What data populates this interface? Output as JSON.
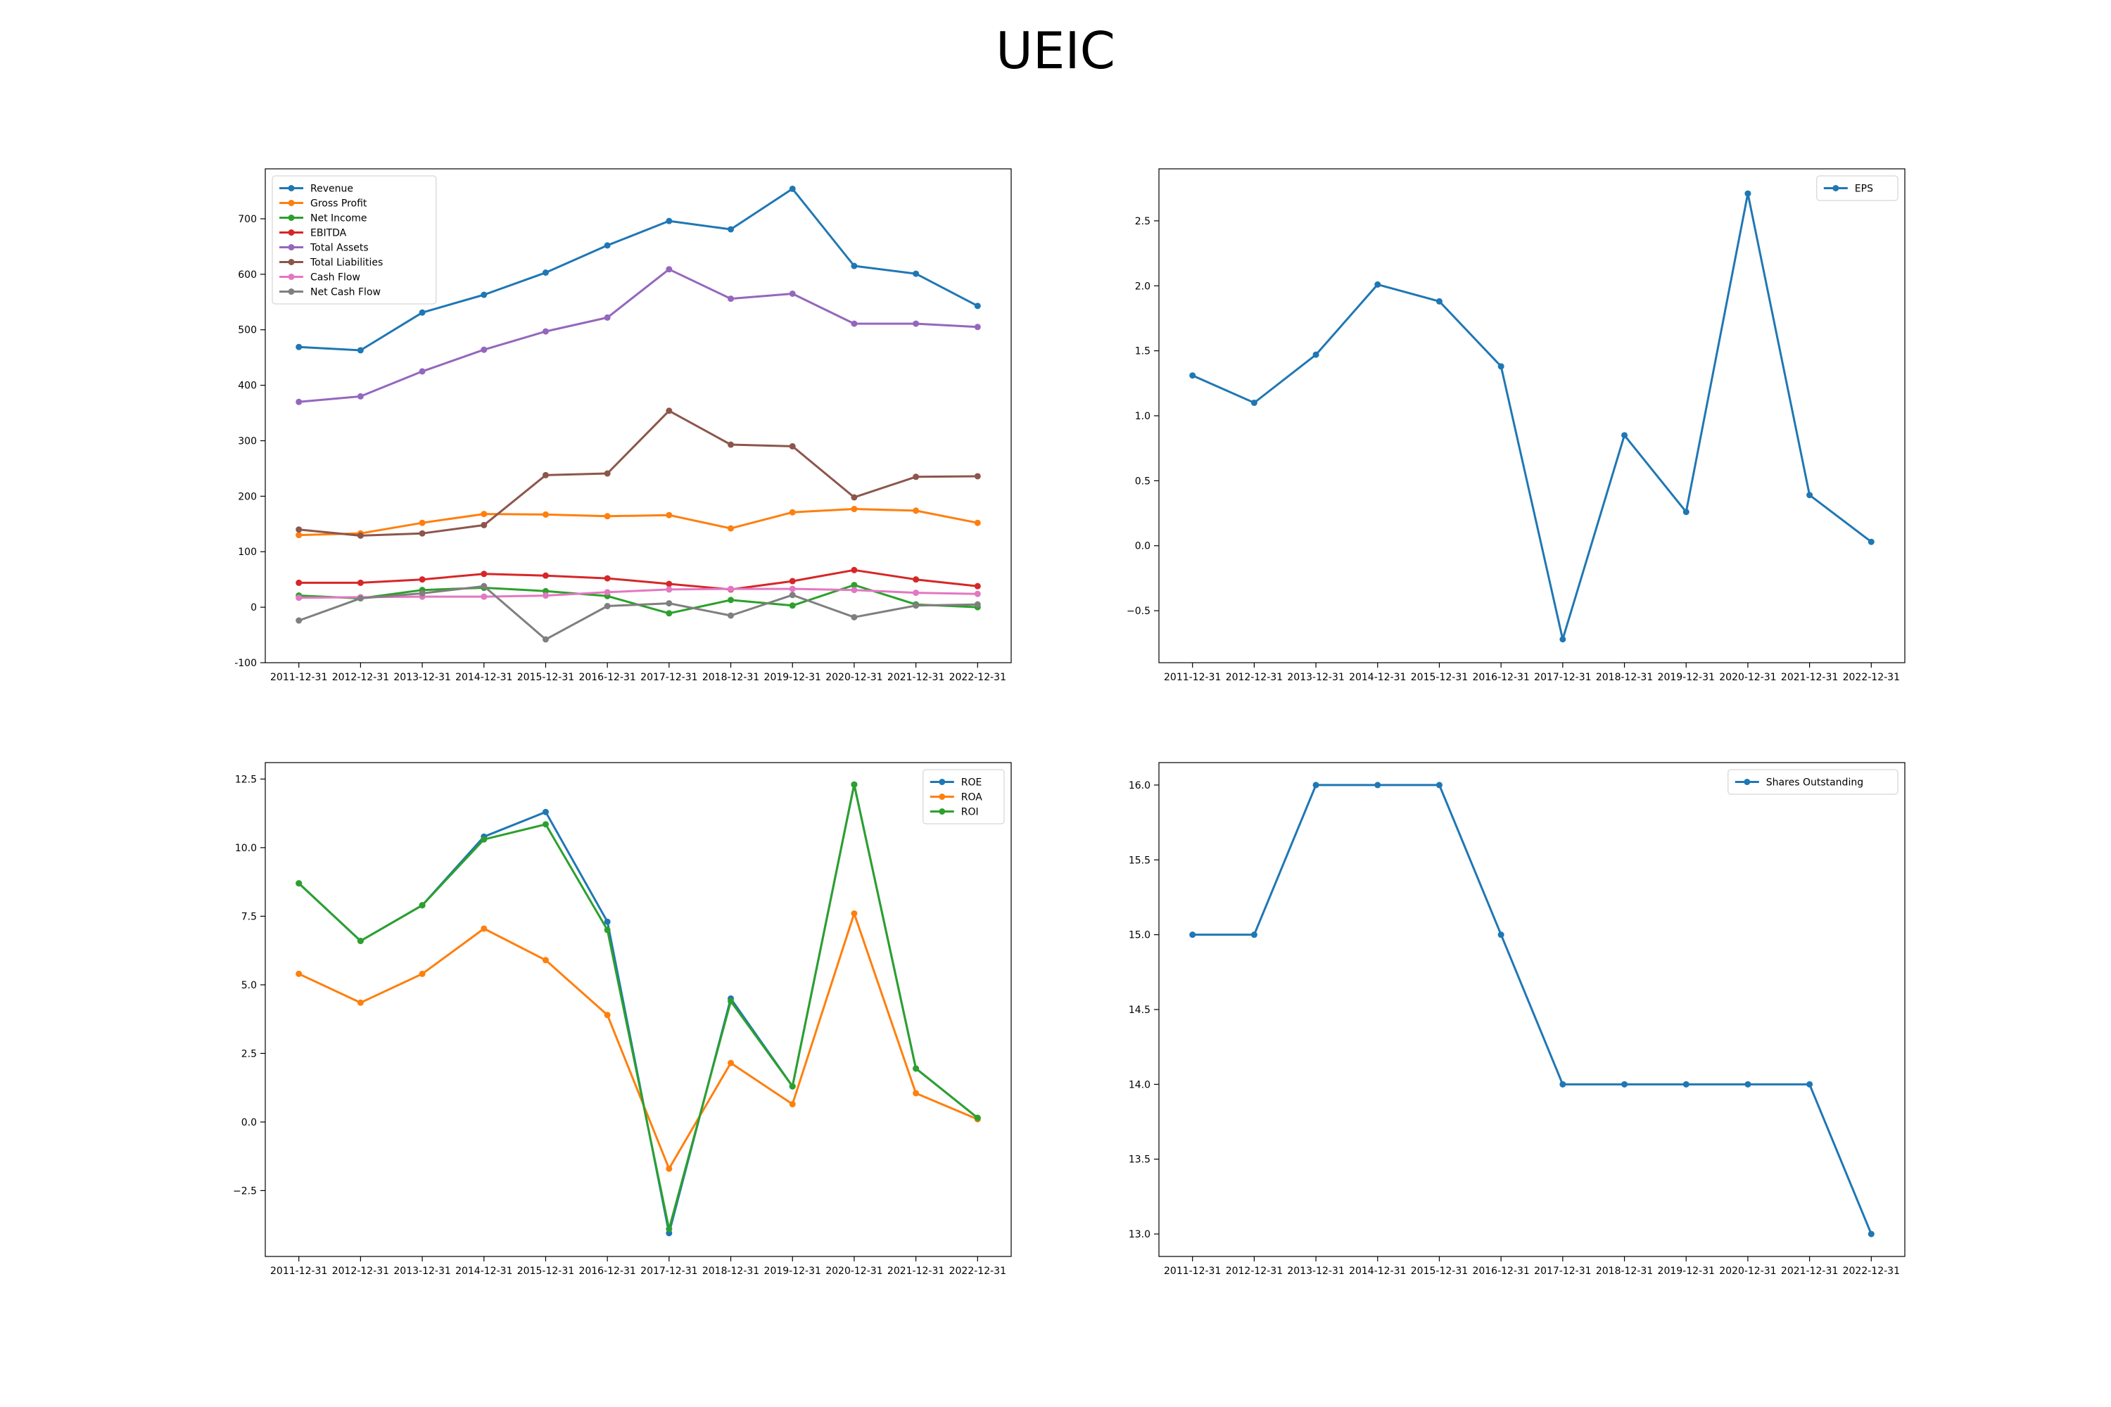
{
  "figure": {
    "title": "UEIC"
  },
  "chart_data": [
    {
      "type": "line",
      "title": "",
      "xlabel": "",
      "ylabel": "",
      "x": [
        "2011-12-31",
        "2012-12-31",
        "2013-12-31",
        "2014-12-31",
        "2015-12-31",
        "2016-12-31",
        "2017-12-31",
        "2018-12-31",
        "2019-12-31",
        "2020-12-31",
        "2021-12-31",
        "2022-12-31"
      ],
      "ylim": [
        -100,
        790
      ],
      "yticks": [
        -100,
        0,
        100,
        200,
        300,
        400,
        500,
        600,
        700
      ],
      "legend": "upper-left",
      "grid": false,
      "series": [
        {
          "name": "Revenue",
          "color": "#1f77b4",
          "values": [
            469,
            463,
            531,
            563,
            603,
            652,
            696,
            681,
            754,
            615,
            601,
            543
          ]
        },
        {
          "name": "Gross Profit",
          "color": "#ff7f0e",
          "values": [
            130,
            133,
            152,
            168,
            167,
            164,
            166,
            142,
            171,
            177,
            174,
            152
          ]
        },
        {
          "name": "Net Income",
          "color": "#2ca02c",
          "values": [
            21,
            16,
            31,
            35,
            29,
            20,
            -11,
            13,
            3,
            40,
            5,
            0
          ]
        },
        {
          "name": "EBITDA",
          "color": "#d62728",
          "values": [
            44,
            44,
            50,
            60,
            57,
            52,
            42,
            32,
            47,
            67,
            50,
            38
          ]
        },
        {
          "name": "Total Assets",
          "color": "#9467bd",
          "values": [
            370,
            380,
            425,
            464,
            497,
            522,
            609,
            556,
            565,
            511,
            511,
            505
          ]
        },
        {
          "name": "Total Liabilities",
          "color": "#8c564b",
          "values": [
            140,
            129,
            133,
            148,
            238,
            241,
            354,
            293,
            290,
            198,
            235,
            236
          ]
        },
        {
          "name": "Cash Flow",
          "color": "#e377c2",
          "values": [
            17,
            18,
            19,
            19,
            21,
            27,
            32,
            33,
            33,
            31,
            26,
            24
          ]
        },
        {
          "name": "Net Cash Flow",
          "color": "#7f7f7f",
          "values": [
            -24,
            16,
            25,
            38,
            -58,
            2,
            7,
            -15,
            22,
            -18,
            3,
            5
          ]
        }
      ]
    },
    {
      "type": "line",
      "title": "",
      "xlabel": "",
      "ylabel": "",
      "x": [
        "2011-12-31",
        "2012-12-31",
        "2013-12-31",
        "2014-12-31",
        "2015-12-31",
        "2016-12-31",
        "2017-12-31",
        "2018-12-31",
        "2019-12-31",
        "2020-12-31",
        "2021-12-31",
        "2022-12-31"
      ],
      "ylim": [
        -0.9,
        2.9
      ],
      "yticks": [
        -0.5,
        0.0,
        0.5,
        1.0,
        1.5,
        2.0,
        2.5
      ],
      "tick_labels": [
        "−0.5",
        "0.0",
        "0.5",
        "1.0",
        "1.5",
        "2.0",
        "2.5"
      ],
      "legend": "upper-right",
      "grid": false,
      "series": [
        {
          "name": "EPS",
          "color": "#1f77b4",
          "values": [
            1.31,
            1.1,
            1.47,
            2.01,
            1.88,
            1.38,
            -0.72,
            0.85,
            0.26,
            2.71,
            0.39,
            0.03
          ]
        }
      ]
    },
    {
      "type": "line",
      "title": "",
      "xlabel": "",
      "ylabel": "",
      "x": [
        "2011-12-31",
        "2012-12-31",
        "2013-12-31",
        "2014-12-31",
        "2015-12-31",
        "2016-12-31",
        "2017-12-31",
        "2018-12-31",
        "2019-12-31",
        "2020-12-31",
        "2021-12-31",
        "2022-12-31"
      ],
      "ylim": [
        -4.9,
        13.1
      ],
      "yticks": [
        -2.5,
        0.0,
        2.5,
        5.0,
        7.5,
        10.0,
        12.5
      ],
      "tick_labels": [
        "−2.5",
        "0.0",
        "2.5",
        "5.0",
        "7.5",
        "10.0",
        "12.5"
      ],
      "legend": "upper-right",
      "grid": false,
      "series": [
        {
          "name": "ROE",
          "color": "#1f77b4",
          "values": [
            8.7,
            6.6,
            7.9,
            10.4,
            11.3,
            7.3,
            -4.05,
            4.5,
            1.3,
            12.3,
            1.95,
            0.15
          ]
        },
        {
          "name": "ROA",
          "color": "#ff7f0e",
          "values": [
            5.4,
            4.35,
            5.4,
            7.05,
            5.9,
            3.9,
            -1.7,
            2.15,
            0.65,
            7.6,
            1.05,
            0.1
          ]
        },
        {
          "name": "ROI",
          "color": "#2ca02c",
          "values": [
            8.7,
            6.6,
            7.9,
            10.3,
            10.85,
            7.0,
            -3.9,
            4.4,
            1.3,
            12.3,
            1.95,
            0.15
          ]
        }
      ]
    },
    {
      "type": "line",
      "title": "",
      "xlabel": "",
      "ylabel": "",
      "x": [
        "2011-12-31",
        "2012-12-31",
        "2013-12-31",
        "2014-12-31",
        "2015-12-31",
        "2016-12-31",
        "2017-12-31",
        "2018-12-31",
        "2019-12-31",
        "2020-12-31",
        "2021-12-31",
        "2022-12-31"
      ],
      "ylim": [
        12.85,
        16.15
      ],
      "yticks": [
        13.0,
        13.5,
        14.0,
        14.5,
        15.0,
        15.5,
        16.0
      ],
      "tick_labels": [
        "13.0",
        "13.5",
        "14.0",
        "14.5",
        "15.0",
        "15.5",
        "16.0"
      ],
      "legend": "upper-right",
      "grid": false,
      "series": [
        {
          "name": "Shares Outstanding",
          "color": "#1f77b4",
          "values": [
            15,
            15,
            16,
            16,
            16,
            15,
            14,
            14,
            14,
            14,
            14,
            13
          ]
        }
      ]
    }
  ]
}
